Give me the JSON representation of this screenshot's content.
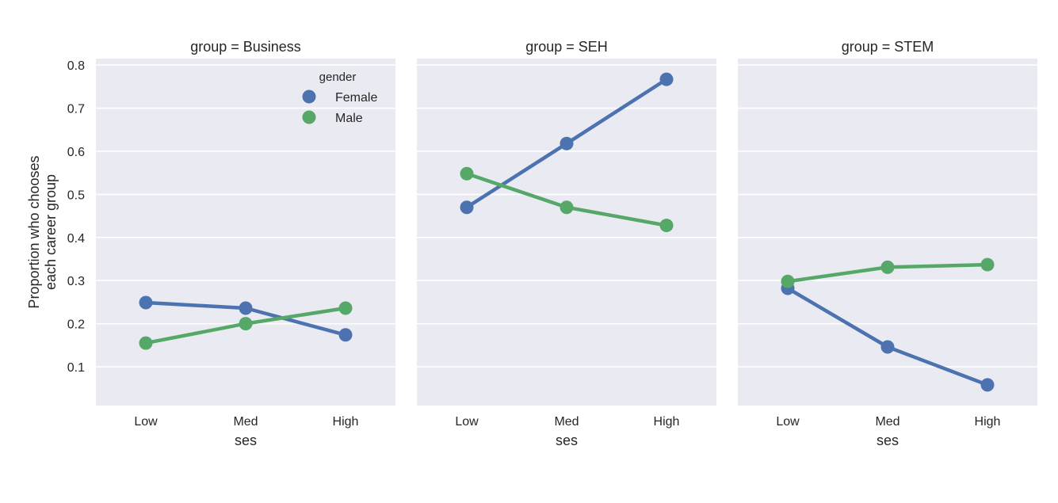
{
  "chart_data": {
    "type": "line",
    "ylabel_lines": [
      "Proportion who chooses",
      "each career group"
    ],
    "xlabel": "ses",
    "categories": [
      "Low",
      "Med",
      "High"
    ],
    "ylim": [
      0.01,
      0.815
    ],
    "yticks": [
      0.1,
      0.2,
      0.3,
      0.4,
      0.5,
      0.6,
      0.7,
      0.8
    ],
    "ytick_labels": [
      "0.1",
      "0.2",
      "0.3",
      "0.4",
      "0.5",
      "0.6",
      "0.7",
      "0.8"
    ],
    "grid": true,
    "legend": {
      "title": "gender",
      "placement": "top-right of first panel",
      "entries": [
        {
          "label": "Female",
          "color": "#4c72b0"
        },
        {
          "label": "Male",
          "color": "#55a868"
        }
      ]
    },
    "panels": [
      {
        "title": "group = Business",
        "series": [
          {
            "name": "Female",
            "color": "#4c72b0",
            "values": [
              0.249,
              0.236,
              0.174
            ]
          },
          {
            "name": "Male",
            "color": "#55a868",
            "values": [
              0.155,
              0.2,
              0.236
            ]
          }
        ]
      },
      {
        "title": "group = SEH",
        "series": [
          {
            "name": "Female",
            "color": "#4c72b0",
            "values": [
              0.47,
              0.618,
              0.767
            ]
          },
          {
            "name": "Male",
            "color": "#55a868",
            "values": [
              0.548,
              0.47,
              0.428
            ]
          }
        ]
      },
      {
        "title": "group = STEM",
        "series": [
          {
            "name": "Female",
            "color": "#4c72b0",
            "values": [
              0.282,
              0.146,
              0.058
            ]
          },
          {
            "name": "Male",
            "color": "#55a868",
            "values": [
              0.298,
              0.331,
              0.337
            ]
          }
        ]
      }
    ]
  },
  "style": {
    "panel_background": "#eaeaf2",
    "grid_color": "#ffffff",
    "text_color": "#262626"
  }
}
